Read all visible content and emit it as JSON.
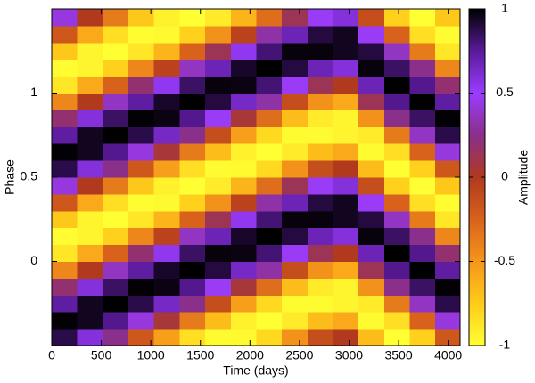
{
  "chart_data": {
    "type": "heatmap",
    "xlabel": "Time (days)",
    "ylabel": "Phase",
    "colorbar_label": "Amplitude",
    "x": [
      129,
      387,
      645,
      903,
      1161,
      1419,
      1677,
      1935,
      2193,
      2451,
      2709,
      2967,
      3225,
      3483,
      3741,
      3999
    ],
    "y": [
      -0.45,
      -0.35,
      -0.25,
      -0.15,
      -0.05,
      0.05,
      0.15,
      0.25,
      0.35,
      0.45,
      0.55,
      0.65,
      0.75,
      0.85,
      0.95,
      1.05,
      1.15,
      1.25,
      1.35,
      1.45
    ],
    "z": [
      [
        0.88,
        0.99,
        0.73,
        0.19,
        -0.43,
        -0.88,
        -0.99,
        -0.73,
        -0.19,
        0.43,
        0.88,
        0.99,
        0.73,
        0.19,
        -0.43,
        -0.88,
        -0.99,
        -0.73,
        -0.19,
        0.43
      ],
      [
        0.59,
        0.95,
        0.95,
        0.59,
        0,
        -0.59,
        -0.95,
        -0.95,
        -0.59,
        0,
        0.59,
        0.95,
        0.95,
        0.59,
        0,
        -0.59,
        -0.95,
        -0.95,
        -0.59,
        0
      ],
      [
        0.25,
        0.77,
        1.0,
        0.84,
        0.37,
        -0.25,
        -0.77,
        -1.0,
        -0.84,
        -0.37,
        0.25,
        0.77,
        1.0,
        0.84,
        0.37,
        -0.25,
        -0.77,
        -1.0,
        -0.84,
        -0.37
      ],
      [
        -0.19,
        0.43,
        0.88,
        0.99,
        0.73,
        0.19,
        -0.43,
        -0.88,
        -0.99,
        -0.73,
        -0.19,
        0.43,
        0.88,
        0.99,
        0.73,
        0.19,
        -0.43,
        -0.88,
        -0.99,
        -0.73
      ],
      [
        -0.54,
        0.06,
        0.64,
        0.97,
        0.93,
        0.54,
        -0.06,
        -0.64,
        -0.97,
        -0.93,
        -0.54,
        0.06,
        0.64,
        0.97,
        0.93,
        0.54,
        -0.06,
        -0.64,
        -0.97,
        -0.93
      ],
      [
        -0.84,
        -0.37,
        0.25,
        0.77,
        1.0,
        0.84,
        0.37,
        -0.25,
        -0.77,
        -1.0,
        -0.84,
        -0.37,
        0.25,
        0.77,
        1.0,
        0.84,
        0.37,
        -0.25,
        -0.77,
        -1.0
      ],
      [
        -0.98,
        -0.68,
        -0.13,
        0.48,
        0.9,
        0.98,
        0.68,
        0.13,
        -0.48,
        -0.9,
        -0.98,
        -0.68,
        -0.13,
        0.48,
        0.9,
        0.98,
        0.68,
        0.13,
        -0.48,
        -0.9
      ],
      [
        -0.97,
        -0.93,
        -0.54,
        0.06,
        0.64,
        0.97,
        0.93,
        0.54,
        -0.06,
        -0.64,
        -0.97,
        -0.93,
        -0.54,
        0.06,
        0.64,
        0.97,
        0.93,
        0.54,
        -0.06,
        -0.64
      ],
      [
        -0.81,
        -1,
        -0.81,
        -0.31,
        0.31,
        0.81,
        1,
        0.81,
        0.31,
        -0.31,
        -0.81,
        -1,
        -0.81,
        -0.31,
        0.31,
        0.81,
        1,
        0.81,
        0.31,
        -0.31
      ],
      [
        -0.48,
        -0.9,
        -0.98,
        -0.68,
        -0.13,
        0.48,
        0.9,
        0.98,
        0.68,
        0.13,
        -0.48,
        -0.9,
        -0.98,
        -0.68,
        -0.13,
        0.48,
        0.9,
        0.98,
        0.68,
        0.13
      ],
      [
        -0.13,
        -0.68,
        -0.98,
        -0.9,
        -0.48,
        0.13,
        0.68,
        0.98,
        0.9,
        0.48,
        -0.13,
        -0.68,
        -0.98,
        -0.9,
        -0.48,
        0.13,
        0.68,
        0.98,
        0.9,
        0.48
      ],
      [
        0,
        -0.59,
        -0.95,
        -0.95,
        -0.59,
        0,
        0.59,
        0.95,
        0.95,
        0.59,
        0,
        -0.59,
        -0.95,
        -0.95,
        -0.59,
        0,
        0.59,
        0.95,
        0.95,
        0.59
      ],
      [
        -0.68,
        -0.98,
        -0.9,
        -0.48,
        0.13,
        0.68,
        0.98,
        0.9,
        0.48,
        -0.13,
        -0.68,
        -0.98,
        -0.9,
        -0.48,
        0.13,
        0.68,
        0.98,
        0.9,
        0.48,
        -0.13
      ],
      [
        -1.0,
        -0.84,
        -0.37,
        0.25,
        0.77,
        1.0,
        0.84,
        0.37,
        -0.25,
        -0.77,
        -1.0,
        -0.84,
        -0.37,
        0.25,
        0.77,
        1.0,
        0.84,
        0.37,
        -0.25,
        -0.77
      ],
      [
        -0.77,
        -0.25,
        0.37,
        0.84,
        1.0,
        0.77,
        0.25,
        -0.37,
        -0.84,
        -1.0,
        -0.77,
        -0.25,
        0.37,
        0.84,
        1.0,
        0.77,
        0.25,
        -0.37,
        -0.84,
        -1.0
      ],
      [
        -0.19,
        0.43,
        0.88,
        0.99,
        0.73,
        0.19,
        -0.43,
        -0.88,
        -0.99,
        -0.73,
        -0.19,
        0.43,
        0.88,
        0.99,
        0.73,
        0.19,
        -0.43,
        -0.88,
        -0.99,
        -0.73
      ]
    ],
    "xlim": [
      0,
      4120
    ],
    "xticks": [
      0,
      500,
      1000,
      1500,
      2000,
      2500,
      3000,
      3500,
      4000
    ],
    "ylim": [
      -0.5,
      1.5
    ],
    "yticks": [
      0,
      0.5,
      1
    ],
    "zlim": [
      -1,
      1
    ],
    "zticks": [
      -1,
      -0.5,
      0,
      0.5,
      1
    ],
    "colormap": [
      "#ffff33",
      "#ffcc1a",
      "#f5961a",
      "#d8621c",
      "#b0391e",
      "#8a2f8a",
      "#9b3cff",
      "#5a1a9a",
      "#000000"
    ]
  }
}
